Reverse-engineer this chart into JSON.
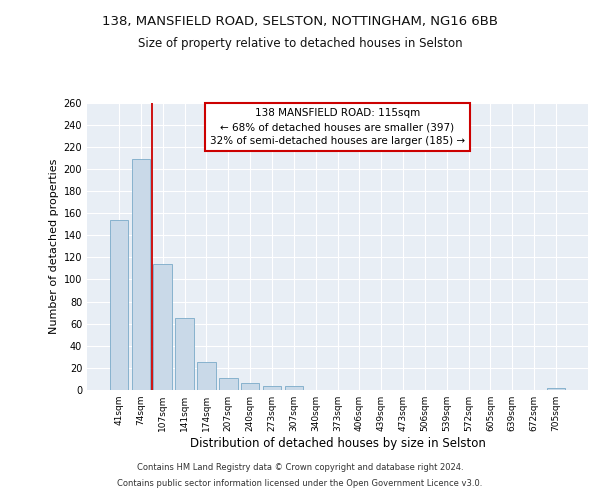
{
  "title1": "138, MANSFIELD ROAD, SELSTON, NOTTINGHAM, NG16 6BB",
  "title2": "Size of property relative to detached houses in Selston",
  "xlabel": "Distribution of detached houses by size in Selston",
  "ylabel": "Number of detached properties",
  "categories": [
    "41sqm",
    "74sqm",
    "107sqm",
    "141sqm",
    "174sqm",
    "207sqm",
    "240sqm",
    "273sqm",
    "307sqm",
    "340sqm",
    "373sqm",
    "406sqm",
    "439sqm",
    "473sqm",
    "506sqm",
    "539sqm",
    "572sqm",
    "605sqm",
    "639sqm",
    "672sqm",
    "705sqm"
  ],
  "values": [
    154,
    209,
    114,
    65,
    25,
    11,
    6,
    4,
    4,
    0,
    0,
    0,
    0,
    0,
    0,
    0,
    0,
    0,
    0,
    0,
    2
  ],
  "bar_color": "#c9d9e8",
  "bar_edge_color": "#7aaac8",
  "background_color": "#e8eef5",
  "grid_color": "#ffffff",
  "vline_color": "#cc0000",
  "annotation_line1": "138 MANSFIELD ROAD: 115sqm",
  "annotation_line2": "← 68% of detached houses are smaller (397)",
  "annotation_line3": "32% of semi-detached houses are larger (185) →",
  "annotation_box_color": "#cc0000",
  "footer1": "Contains HM Land Registry data © Crown copyright and database right 2024.",
  "footer2": "Contains public sector information licensed under the Open Government Licence v3.0.",
  "ylim": [
    0,
    260
  ],
  "yticks": [
    0,
    20,
    40,
    60,
    80,
    100,
    120,
    140,
    160,
    180,
    200,
    220,
    240,
    260
  ]
}
